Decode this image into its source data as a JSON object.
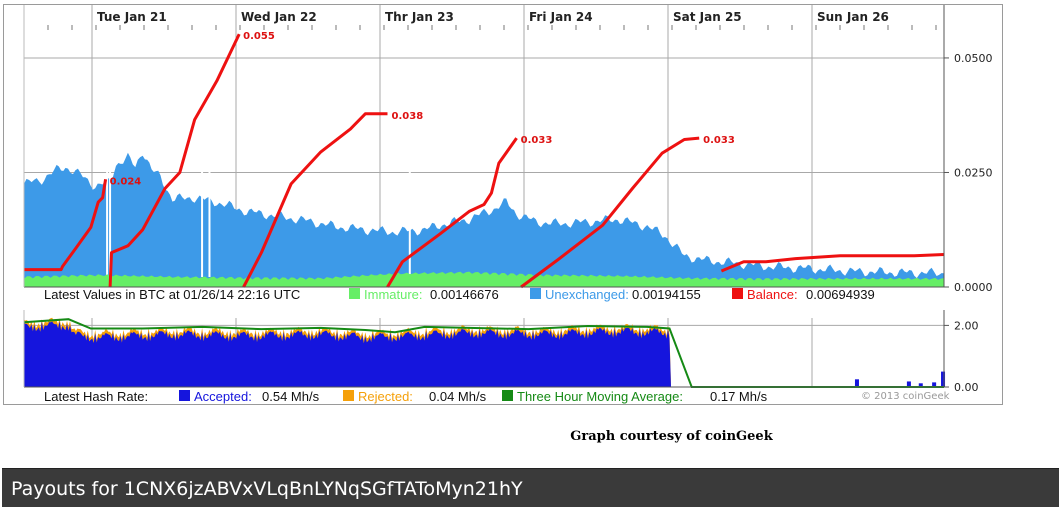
{
  "chart_data": [
    {
      "type": "area",
      "x_axis": {
        "days": [
          "Tue  Jan 21",
          "Wed  Jan 22",
          "Thr  Jan 23",
          "Fri  Jan 24",
          "Sat  Jan 25",
          "Sun  Jan 26"
        ]
      },
      "y_axis": {
        "ticks": [
          "0.0500",
          "0.0250",
          "0.0000"
        ],
        "ylim": [
          0,
          0.0585
        ]
      },
      "grid": true,
      "series": [
        {
          "name": "Unexchanged",
          "color": "#3d9ae8",
          "kind": "area",
          "points": [
            [
              0,
              0.0225
            ],
            [
              0.12,
              0.0235
            ],
            [
              0.22,
              0.0255
            ],
            [
              0.28,
              0.0262
            ],
            [
              0.38,
              0.0245
            ],
            [
              0.48,
              0.022
            ],
            [
              0.58,
              0.023
            ],
            [
              0.62,
              0.0268
            ],
            [
              0.7,
              0.0282
            ],
            [
              0.75,
              0.0262
            ],
            [
              0.8,
              0.0298
            ],
            [
              0.86,
              0.0255
            ],
            [
              0.92,
              0.024
            ],
            [
              1.0,
              0.0192
            ],
            [
              1.15,
              0.0195
            ],
            [
              1.3,
              0.0185
            ],
            [
              1.5,
              0.0165
            ],
            [
              1.7,
              0.0155
            ],
            [
              1.9,
              0.0145
            ],
            [
              2.1,
              0.0132
            ],
            [
              2.3,
              0.0125
            ],
            [
              2.5,
              0.012
            ],
            [
              2.7,
              0.0125
            ],
            [
              2.8,
              0.0135
            ],
            [
              3.0,
              0.0148
            ],
            [
              3.15,
              0.0168
            ],
            [
              3.25,
              0.0185
            ],
            [
              3.32,
              0.016
            ],
            [
              3.45,
              0.0142
            ],
            [
              3.6,
              0.0138
            ],
            [
              3.8,
              0.0142
            ],
            [
              4.0,
              0.0148
            ],
            [
              4.2,
              0.0132
            ],
            [
              4.32,
              0.0112
            ],
            [
              4.45,
              0.0068
            ],
            [
              4.6,
              0.0058
            ],
            [
              4.8,
              0.0052
            ],
            [
              5.0,
              0.0045
            ],
            [
              5.3,
              0.004
            ],
            [
              5.6,
              0.0034
            ],
            [
              5.85,
              0.0032
            ],
            [
              6.2,
              0.003
            ]
          ]
        },
        {
          "name": "Immature",
          "color": "#66ee66",
          "kind": "area",
          "points": [
            [
              0,
              0.0018
            ],
            [
              0.5,
              0.0022
            ],
            [
              1.0,
              0.0018
            ],
            [
              1.5,
              0.0016
            ],
            [
              2.0,
              0.0015
            ],
            [
              2.5,
              0.0025
            ],
            [
              3.0,
              0.0028
            ],
            [
              3.5,
              0.0022
            ],
            [
              4.0,
              0.002
            ],
            [
              4.5,
              0.0015
            ],
            [
              5.0,
              0.0014
            ],
            [
              5.5,
              0.0014
            ],
            [
              6.2,
              0.0014
            ]
          ]
        },
        {
          "name": "Balance",
          "color": "#ee1111",
          "kind": "line",
          "segments": [
            [
              [
                0,
                0.0038
              ],
              [
                0.25,
                0.0038
              ],
              [
                0.26,
                0.0045
              ],
              [
                0.35,
                0.0085
              ],
              [
                0.45,
                0.013
              ],
              [
                0.5,
                0.0185
              ],
              [
                0.53,
                0.0195
              ],
              [
                0.55,
                0.0235
              ]
            ],
            [
              [
                0.58,
                0.0
              ],
              [
                0.59,
                0.0075
              ],
              [
                0.7,
                0.009
              ],
              [
                0.8,
                0.0125
              ],
              [
                0.95,
                0.0215
              ],
              [
                1.05,
                0.025
              ],
              [
                1.15,
                0.0365
              ],
              [
                1.3,
                0.045
              ],
              [
                1.45,
                0.0552
              ]
            ],
            [
              [
                1.48,
                0.0
              ],
              [
                1.6,
                0.0075
              ],
              [
                1.8,
                0.0225
              ],
              [
                2.0,
                0.0295
              ],
              [
                2.2,
                0.0345
              ],
              [
                2.3,
                0.0378
              ],
              [
                2.45,
                0.0378
              ]
            ],
            [
              [
                2.45,
                0.0
              ],
              [
                2.55,
                0.0055
              ],
              [
                2.8,
                0.0115
              ],
              [
                3.0,
                0.0165
              ],
              [
                3.1,
                0.018
              ],
              [
                3.15,
                0.0205
              ],
              [
                3.2,
                0.027
              ],
              [
                3.32,
                0.0325
              ]
            ],
            [
              [
                3.35,
                0.0
              ],
              [
                3.6,
                0.006
              ],
              [
                3.9,
                0.0135
              ],
              [
                4.1,
                0.0215
              ],
              [
                4.3,
                0.0292
              ],
              [
                4.45,
                0.0322
              ],
              [
                4.55,
                0.0325
              ]
            ],
            [
              [
                4.7,
                0.0035
              ],
              [
                4.85,
                0.0055
              ],
              [
                5.0,
                0.0055
              ],
              [
                5.2,
                0.0062
              ],
              [
                5.5,
                0.0068
              ],
              [
                5.8,
                0.0068
              ],
              [
                6.0,
                0.0068
              ],
              [
                6.2,
                0.0071
              ]
            ]
          ]
        }
      ],
      "annotations": [
        {
          "x": 0.55,
          "y": 0.0235,
          "text": "0.024"
        },
        {
          "x": 1.45,
          "y": 0.0552,
          "text": "0.055"
        },
        {
          "x": 2.45,
          "y": 0.0378,
          "text": "0.038"
        },
        {
          "x": 3.32,
          "y": 0.0325,
          "text": "0.033"
        },
        {
          "x": 4.55,
          "y": 0.0325,
          "text": "0.033"
        }
      ],
      "legend": {
        "prefix": "Latest Values in BTC at 01/26/14 22:16 UTC",
        "items": [
          {
            "label": "Immature:",
            "value": "0.00146676",
            "color": "#66ee66"
          },
          {
            "label": "Unexchanged:",
            "value": "0.00194155",
            "color": "#3d9ae8"
          },
          {
            "label": "Balance:",
            "value": "0.00694939",
            "color": "#ee1111"
          }
        ]
      }
    },
    {
      "type": "area",
      "y_axis": {
        "ticks": [
          "2.00",
          "0.00"
        ],
        "ylim": [
          0,
          2.5
        ]
      },
      "grid": true,
      "series": [
        {
          "name": "Accepted",
          "color": "#1515dd",
          "kind": "area"
        },
        {
          "name": "Rejected",
          "color": "#f5a00a",
          "kind": "area"
        },
        {
          "name": "Three Hour Moving Average",
          "color": "#158a15",
          "kind": "line"
        }
      ],
      "accepted_profile": [
        [
          0,
          2.1
        ],
        [
          0.3,
          2.15
        ],
        [
          0.35,
          1.8
        ],
        [
          0.5,
          1.75
        ],
        [
          1.0,
          1.85
        ],
        [
          1.5,
          1.8
        ],
        [
          2.0,
          1.85
        ],
        [
          2.3,
          1.75
        ],
        [
          2.6,
          1.8
        ],
        [
          2.8,
          1.85
        ],
        [
          3.0,
          1.9
        ],
        [
          3.5,
          1.85
        ],
        [
          4.0,
          1.95
        ],
        [
          4.35,
          1.9
        ],
        [
          4.36,
          0
        ]
      ],
      "moving_average": [
        [
          0,
          2.1
        ],
        [
          0.3,
          2.2
        ],
        [
          0.45,
          1.9
        ],
        [
          0.8,
          1.9
        ],
        [
          1.2,
          1.95
        ],
        [
          1.6,
          1.88
        ],
        [
          2.0,
          1.92
        ],
        [
          2.3,
          1.85
        ],
        [
          2.5,
          1.78
        ],
        [
          2.7,
          1.95
        ],
        [
          3.0,
          1.92
        ],
        [
          3.4,
          1.88
        ],
        [
          3.8,
          1.98
        ],
        [
          4.2,
          1.95
        ],
        [
          4.35,
          1.9
        ],
        [
          4.5,
          0.0
        ],
        [
          6.2,
          0.0
        ]
      ],
      "late_bars": [
        [
          5.6,
          0.25
        ],
        [
          5.95,
          0.18
        ],
        [
          6.03,
          0.12
        ],
        [
          6.12,
          0.15
        ],
        [
          6.18,
          0.5
        ]
      ],
      "legend": {
        "prefix": "Latest Hash Rate:",
        "items": [
          {
            "label": "Accepted:",
            "value": "0.54 Mh/s",
            "color": "#1515dd"
          },
          {
            "label": "Rejected:",
            "value": "0.04 Mh/s",
            "color": "#f5a00a"
          },
          {
            "label": "Three Hour Moving Average:",
            "value": "0.17 Mh/s",
            "color": "#158a15"
          }
        ]
      },
      "copyright": "© 2013 coinGeek"
    }
  ],
  "courtesy": "Graph courtesy of coinGeek",
  "payouts_title": "Payouts for 1CNX6jzABVxVLqBnLYNqSGfTAToMyn21hY"
}
